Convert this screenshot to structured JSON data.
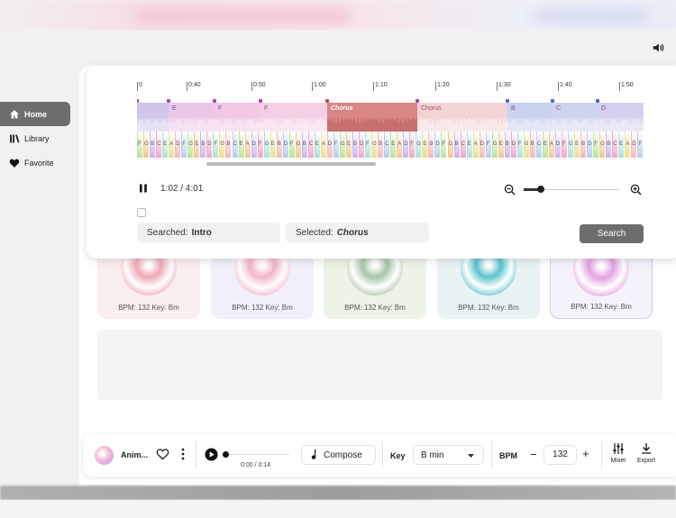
{
  "nav": {
    "items": [
      {
        "label": "Home",
        "icon": "home-icon",
        "active": true
      },
      {
        "label": "Library",
        "icon": "library-icon",
        "active": false
      },
      {
        "label": "Favorite",
        "icon": "heart-icon",
        "active": false
      }
    ]
  },
  "timeline": {
    "ticks": [
      "0",
      "0:40",
      "0:50",
      "1:00",
      "1:10",
      "1:20",
      "1:30",
      "1:40",
      "1:50"
    ],
    "sections": [
      {
        "label": "",
        "color": "#cfc6ea"
      },
      {
        "label": "E",
        "color": "#ecc6e8"
      },
      {
        "label": "F",
        "color": "#f2c8e6"
      },
      {
        "label": "F",
        "color": "#f4cfe3"
      },
      {
        "label": "Chorus",
        "color": "#d88686"
      },
      {
        "label": "Chorus",
        "color": "#f3d3d6"
      },
      {
        "label": "B",
        "color": "#c9d2ee"
      },
      {
        "label": "C",
        "color": "#cfd3ee"
      },
      {
        "label": "D",
        "color": "#d5d0ee"
      }
    ],
    "chord_colors": [
      "#b9e59a",
      "#f1c98f",
      "#c9b6ef",
      "#f4a6c8",
      "#aee1d8",
      "#e7e291",
      "#f6b8b8",
      "#b9cdf0"
    ],
    "chord_letters": [
      "F",
      "G",
      "B",
      "C",
      "E",
      "A",
      "D",
      "F",
      "G",
      "E",
      "B",
      "D"
    ]
  },
  "transport": {
    "time": "1:02 / 4:01",
    "zoom_level": 0.1
  },
  "search": {
    "searched_label": "Searched:",
    "searched_value": "Intro",
    "selected_label": "Selected:",
    "selected_value": "Chorus",
    "button_label": "Search"
  },
  "tiles": [
    {
      "bpm": "BPM: 132 Key: Bm",
      "bg": "#fbeeee",
      "disc": "#f0a9b4"
    },
    {
      "bpm": "BPM: 132 Key: Bm",
      "bg": "#f1f0fa",
      "disc": "#f3b4cb"
    },
    {
      "bpm": "BPM: 132 Key: Bm",
      "bg": "#edf3e7",
      "disc": "#a7c5a6"
    },
    {
      "bpm": "BPM: 132 Key: Bm",
      "bg": "#e9f3f4",
      "disc": "#5bc3cc"
    },
    {
      "bpm": "BPM: 132 Key: Bm",
      "bg": "#f4f2fa",
      "disc": "#e4a1e0"
    }
  ],
  "player": {
    "title": "Anim...",
    "time": "0:00 / 0:14",
    "progress": 0,
    "compose_label": "Compose",
    "key_label": "Key",
    "key_value": "B min",
    "bpm_label": "BPM",
    "bpm_value": "132",
    "minus": "−",
    "plus": "+",
    "mixer_label": "Mixer",
    "export_label": "Export"
  }
}
